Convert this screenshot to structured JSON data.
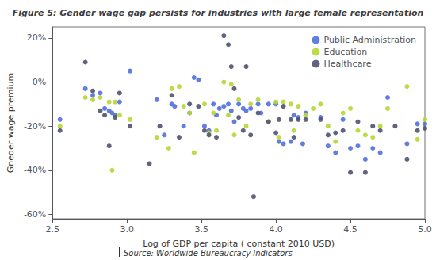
{
  "chart_data": {
    "type": "scatter",
    "title": "Figure 5: Gender wage gap persists for industries with large female representation",
    "x_label": "Log of GDP per capita ( constant 2010 USD)",
    "y_label": "Gneder wage premium",
    "source": "Source: Worldwide Bureaucracy Indicators",
    "xlim": [
      2.5,
      5.0
    ],
    "ylim": [
      -0.62,
      0.25
    ],
    "xticks": [
      2.5,
      {
        "value": 3.0,
        "label": "3.0"
      },
      3.5,
      {
        "value": 4.0,
        "label": "4.0"
      },
      4.5,
      {
        "value": 5.0,
        "label": "5.0"
      }
    ],
    "yticks": [
      {
        "value": -0.6,
        "label": "-60%"
      },
      {
        "value": -0.4,
        "label": "-40%"
      },
      {
        "value": -0.2,
        "label": "-20%"
      },
      {
        "value": 0.0,
        "label": "0%"
      },
      {
        "value": 0.2,
        "label": "20%"
      }
    ],
    "grid": false,
    "legend": "upper right",
    "hlines": [
      {
        "y": 0,
        "color": "#A0A0A0"
      }
    ],
    "series": [
      {
        "name": "Public Administration",
        "x": [
          2.55,
          2.72,
          2.77,
          2.82,
          2.85,
          2.88,
          2.9,
          2.92,
          2.95,
          3.02,
          3.2,
          3.25,
          3.3,
          3.32,
          3.38,
          3.42,
          3.45,
          3.48,
          3.52,
          3.55,
          3.58,
          3.6,
          3.62,
          3.65,
          3.68,
          3.7,
          3.72,
          3.75,
          3.78,
          3.8,
          3.83,
          3.88,
          3.9,
          3.95,
          4.0,
          4.02,
          4.05,
          4.1,
          4.12,
          4.15,
          4.18,
          4.2,
          4.3,
          4.35,
          4.4,
          4.45,
          4.5,
          4.55,
          4.6,
          4.65,
          4.7,
          4.75,
          4.88,
          4.95,
          5.0
        ],
        "values": [
          -0.17,
          -0.03,
          -0.06,
          -0.05,
          -0.12,
          -0.13,
          -0.14,
          -0.15,
          -0.09,
          0.05,
          -0.08,
          -0.24,
          -0.1,
          -0.11,
          -0.2,
          -0.14,
          0.02,
          0.01,
          -0.2,
          -0.22,
          -0.1,
          -0.15,
          -0.12,
          -0.11,
          -0.1,
          -0.13,
          -0.18,
          -0.1,
          -0.12,
          -0.13,
          -0.12,
          -0.1,
          -0.14,
          -0.1,
          -0.1,
          -0.27,
          -0.28,
          -0.27,
          -0.15,
          -0.16,
          -0.28,
          -0.14,
          -0.16,
          -0.29,
          -0.32,
          -0.17,
          -0.3,
          -0.29,
          -0.35,
          -0.3,
          -0.32,
          -0.07,
          -0.28,
          -0.19,
          -0.19
        ]
      },
      {
        "name": "Education",
        "x": [
          2.55,
          2.72,
          2.77,
          2.82,
          2.88,
          2.9,
          2.92,
          2.95,
          3.02,
          3.2,
          3.28,
          3.3,
          3.35,
          3.38,
          3.42,
          3.45,
          3.52,
          3.55,
          3.58,
          3.6,
          3.65,
          3.68,
          3.7,
          3.72,
          3.75,
          3.8,
          3.83,
          3.88,
          3.95,
          4.0,
          4.02,
          4.05,
          4.1,
          4.12,
          4.15,
          4.2,
          4.25,
          4.3,
          4.35,
          4.4,
          4.45,
          4.5,
          4.55,
          4.6,
          4.65,
          4.7,
          4.75,
          4.88,
          4.95,
          5.0
        ],
        "values": [
          -0.2,
          -0.07,
          -0.08,
          -0.07,
          -0.09,
          -0.4,
          -0.09,
          -0.15,
          -0.17,
          -0.25,
          -0.3,
          -0.03,
          -0.02,
          -0.11,
          -0.14,
          -0.32,
          -0.1,
          -0.23,
          -0.14,
          -0.22,
          0.0,
          -0.15,
          -0.01,
          -0.24,
          -0.08,
          -0.2,
          -0.1,
          -0.08,
          -0.18,
          -0.09,
          -0.25,
          -0.09,
          -0.1,
          -0.22,
          -0.11,
          -0.15,
          -0.12,
          -0.1,
          -0.2,
          -0.27,
          -0.14,
          -0.12,
          -0.22,
          -0.24,
          -0.25,
          -0.2,
          -0.12,
          -0.02,
          -0.26,
          -0.17
        ]
      },
      {
        "name": "Healthcare",
        "x": [
          2.55,
          2.72,
          2.77,
          2.82,
          2.85,
          2.88,
          2.92,
          2.95,
          3.02,
          3.15,
          3.22,
          3.3,
          3.35,
          3.42,
          3.48,
          3.52,
          3.55,
          3.6,
          3.65,
          3.68,
          3.7,
          3.72,
          3.75,
          3.78,
          3.8,
          3.83,
          3.85,
          3.88,
          3.95,
          4.0,
          4.02,
          4.05,
          4.1,
          4.12,
          4.15,
          4.2,
          4.3,
          4.35,
          4.4,
          4.45,
          4.5,
          4.55,
          4.6,
          4.65,
          4.7,
          4.8,
          4.88,
          4.95,
          5.0
        ],
        "values": [
          -0.22,
          0.09,
          -0.04,
          -0.13,
          -0.15,
          -0.29,
          -0.16,
          -0.05,
          -0.2,
          -0.37,
          -0.2,
          -0.06,
          -0.25,
          -0.1,
          -0.11,
          -0.22,
          -0.24,
          -0.25,
          0.21,
          0.17,
          0.07,
          -0.03,
          -0.16,
          -0.22,
          0.07,
          -0.24,
          -0.52,
          -0.14,
          -0.18,
          -0.23,
          -0.17,
          -0.11,
          -0.17,
          -0.25,
          -0.17,
          -0.17,
          -0.17,
          -0.24,
          -0.23,
          -0.22,
          -0.41,
          -0.18,
          -0.41,
          -0.2,
          -0.22,
          -0.2,
          -0.35,
          -0.22,
          -0.21
        ]
      }
    ]
  }
}
